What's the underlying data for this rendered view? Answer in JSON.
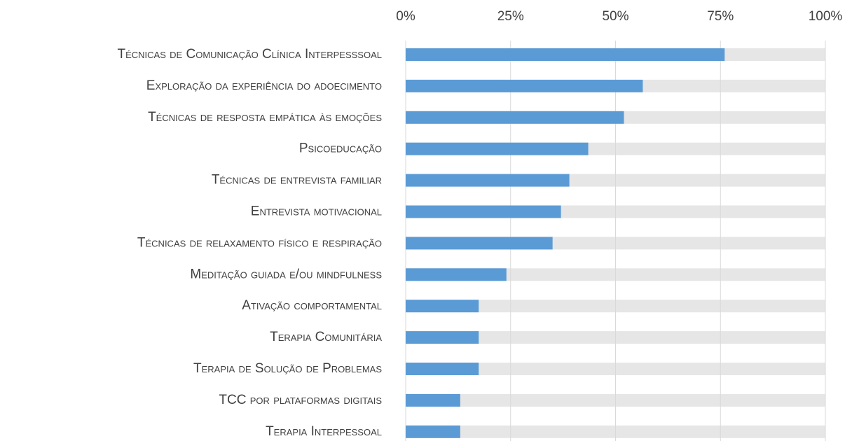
{
  "chart_data": {
    "type": "bar",
    "orientation": "horizontal",
    "categories": [
      "Técnicas de Comunicação Clínica Interpesssoal",
      "Exploração da experiência do adoecimento",
      "Técnicas de resposta empática às emoções",
      "Psicoeducação",
      "Técnicas de entrevista familiar",
      "Entrevista motivacional",
      "Técnicas de relaxamento físico e respiração",
      "Meditação guiada e/ou mindfulness",
      "Ativação comportamental",
      "Terapia Comunitária",
      "Terapia de Solução de Problemas",
      "TCC por plataformas digitais",
      "Terapia Interpessoal"
    ],
    "values": [
      76,
      56.5,
      52,
      43.5,
      39,
      37,
      35,
      24,
      17.4,
      17.4,
      17.4,
      13,
      13
    ],
    "color": "#5b9bd5",
    "track_color": "#e6e6e6",
    "xlim": [
      0,
      100
    ],
    "xticks": [
      {
        "value": 0,
        "label": "0%"
      },
      {
        "value": 25,
        "label": "25%"
      },
      {
        "value": 50,
        "label": "50%"
      },
      {
        "value": 75,
        "label": "75%"
      },
      {
        "value": 100,
        "label": "100%"
      }
    ],
    "grid": true
  }
}
